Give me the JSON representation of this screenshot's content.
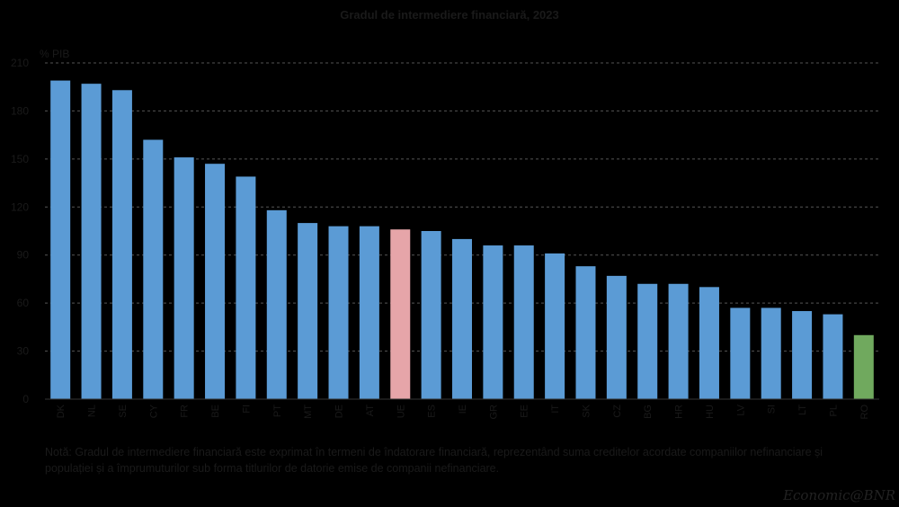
{
  "chart_data": {
    "type": "bar",
    "title": "Gradul de intermediere financiară, 2023",
    "ylabel": "% PIB",
    "ylim": [
      0,
      210
    ],
    "yticks": [
      0,
      30,
      60,
      90,
      120,
      150,
      180,
      210
    ],
    "grid": true,
    "categories": [
      "DK",
      "NL",
      "SE",
      "CY",
      "FR",
      "BE",
      "FI",
      "PT",
      "MT",
      "DE",
      "AT",
      "UE",
      "ES",
      "IE",
      "GR",
      "EE",
      "IT",
      "SK",
      "CZ",
      "BG",
      "HR",
      "HU",
      "LV",
      "SI",
      "LT",
      "PL",
      "RO"
    ],
    "values": [
      199,
      197,
      193,
      162,
      151,
      147,
      139,
      118,
      110,
      108,
      108,
      106,
      105,
      100,
      96,
      96,
      91,
      83,
      77,
      72,
      72,
      70,
      57,
      57,
      55,
      53,
      40
    ],
    "colors": {
      "default": "#5b9bd5",
      "UE": "#e6a5a9",
      "RO": "#70a95e"
    }
  },
  "note": "Notă: Gradul de intermediere financiară este exprimat în termeni de îndatorare financiară, reprezentând suma creditelor acordate companiilor nefinanciare și populației și a împrumuturilor sub forma titlurilor de datorie emise de companii nefinanciare.",
  "brand": "Economic@BNR"
}
